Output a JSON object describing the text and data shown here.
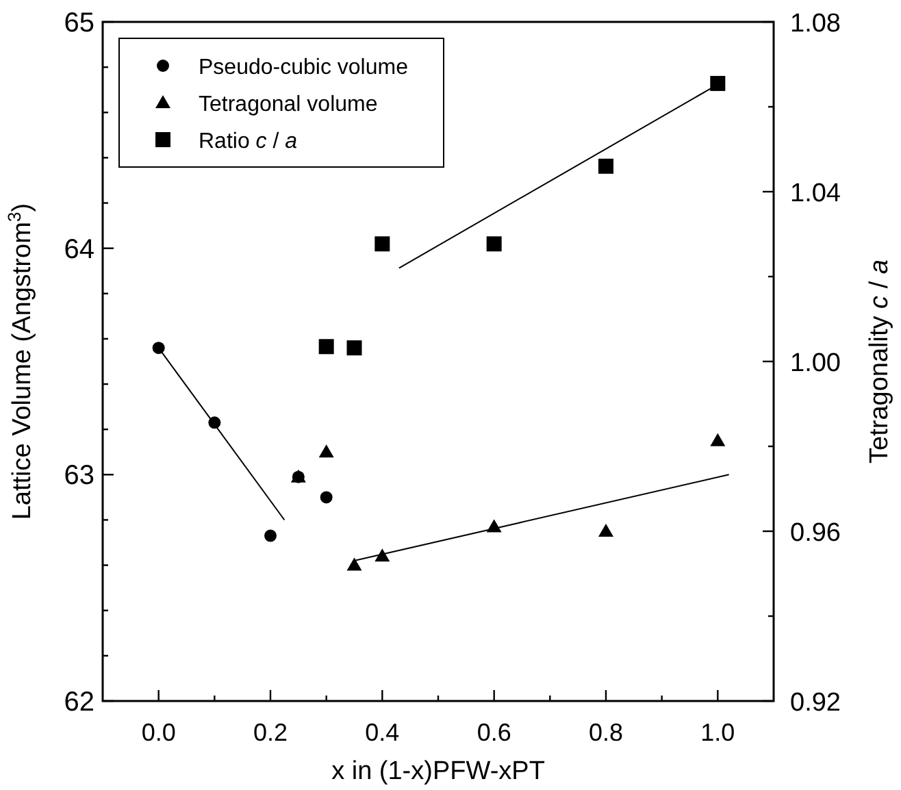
{
  "chart_data": {
    "type": "scatter",
    "xlabel": "x in (1-x)PFW-xPT",
    "ylabel": "Lattice Volume (Angstrom$^{3}$)",
    "y2label": "Tetragonality c / a",
    "xlim": [
      -0.1,
      1.1
    ],
    "xticks": [
      {
        "value": 0,
        "label": "0.0"
      },
      {
        "value": 0.1,
        "label": null
      },
      {
        "value": 0.2,
        "label": "0.2"
      },
      {
        "value": 0.3,
        "label": null
      },
      {
        "value": 0.4,
        "label": "0.4"
      },
      {
        "value": 0.5,
        "label": null
      },
      {
        "value": 0.6,
        "label": "0.6"
      },
      {
        "value": 0.7,
        "label": null
      },
      {
        "value": 0.8,
        "label": "0.8"
      },
      {
        "value": 0.9,
        "label": null
      },
      {
        "value": 1,
        "label": "1.0"
      }
    ],
    "ylim": [
      62,
      65
    ],
    "yticks": [
      62,
      {
        "value": 62.2,
        "label": null
      },
      {
        "value": 62.4,
        "label": null
      },
      {
        "value": 62.6,
        "label": null
      },
      {
        "value": 62.8,
        "label": null
      },
      63,
      {
        "value": 63.2,
        "label": null
      },
      {
        "value": 63.4,
        "label": null
      },
      {
        "value": 63.6,
        "label": null
      },
      {
        "value": 63.8,
        "label": null
      },
      64,
      {
        "value": 64.2,
        "label": null
      },
      {
        "value": 64.4,
        "label": null
      },
      {
        "value": 64.6,
        "label": null
      },
      {
        "value": 64.8,
        "label": null
      },
      65
    ],
    "y2lim": [
      0.92,
      1.08
    ],
    "y2ticks": [
      0.92,
      {
        "value": 0.94,
        "label": null
      },
      0.96,
      {
        "value": 0.98,
        "label": null
      },
      {
        "value": 1,
        "label": "1.00"
      },
      {
        "value": 1.02,
        "label": null
      },
      1.04,
      {
        "value": 1.06,
        "label": null
      },
      1.08
    ],
    "legend": "top left",
    "grid": false,
    "series": [
      {
        "name": "Pseudo-cubic volume",
        "color": "#000000",
        "marker": "circle",
        "x": [
          0,
          0.1,
          0.2,
          0.25,
          0.3
        ],
        "values": [
          63.56,
          63.23,
          62.73,
          62.99,
          62.9
        ]
      },
      {
        "name": "Tetragonal volume",
        "color": "#000000",
        "marker": "triangle",
        "x": [
          0.25,
          0.3,
          0.35,
          0.4,
          0.6,
          0.8,
          1.0
        ],
        "values": [
          62.99,
          63.1,
          62.6,
          62.64,
          62.77,
          62.75,
          63.15
        ]
      },
      {
        "name": "Ratio c / a",
        "color": "#000000",
        "marker": "square",
        "axis": "y2",
        "x": [
          0.3,
          0.35,
          0.4,
          0.6,
          0.8,
          1.0
        ],
        "values": [
          1.0035,
          1.0032,
          1.0277,
          1.0277,
          1.046,
          1.0655
        ]
      },
      {
        "type": "line",
        "color": "#000000",
        "marker": "none",
        "x": [
          0,
          0.225
        ],
        "values": [
          63.56,
          62.8
        ]
      },
      {
        "type": "line",
        "color": "#000000",
        "marker": "none",
        "x": [
          0.35,
          1.02
        ],
        "values": [
          62.62,
          63.0
        ]
      },
      {
        "type": "line",
        "color": "#000000",
        "marker": "none",
        "axis": "y2",
        "x": [
          0.43,
          0.99
        ],
        "values": [
          1.022,
          1.0645
        ]
      }
    ]
  }
}
